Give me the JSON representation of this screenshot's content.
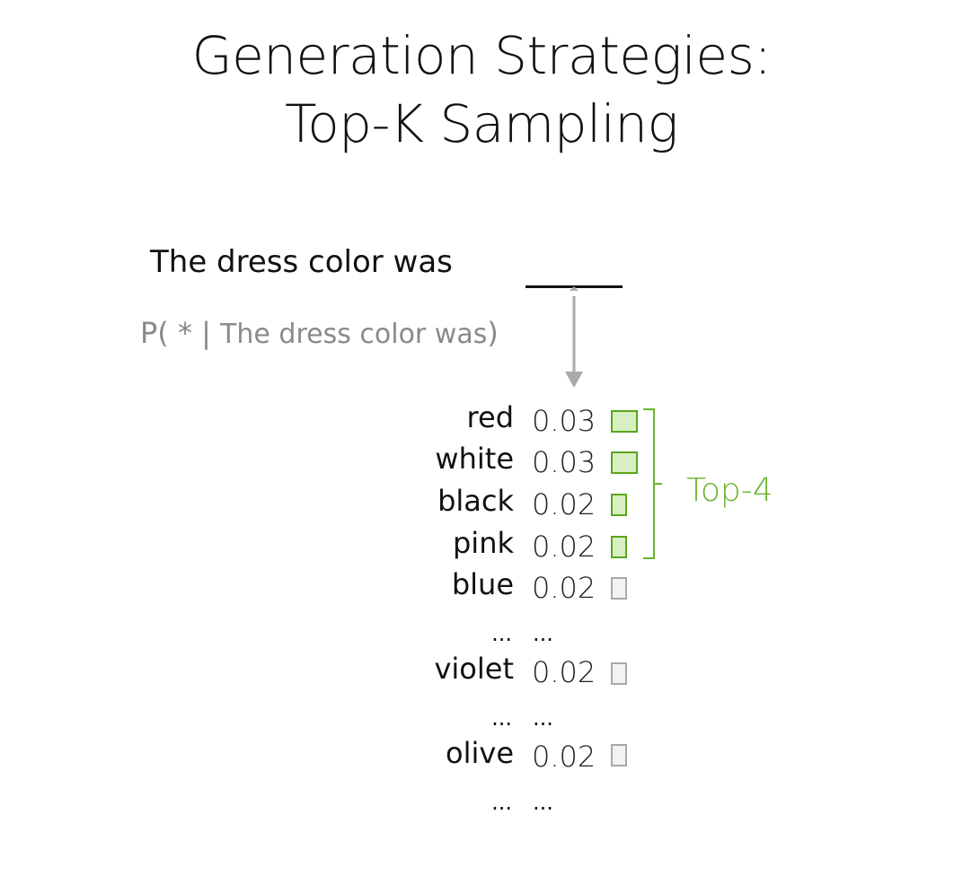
{
  "title": {
    "line1": "Generation Strategies:",
    "line2": "Top-K Sampling"
  },
  "sentence": "The dress color was",
  "conditional": {
    "prefix": "P( * |",
    "context": "The dress color was",
    "suffix": ")"
  },
  "tokens": [
    {
      "word": "red",
      "prob": "0.03",
      "in_top_k": true
    },
    {
      "word": "white",
      "prob": "0.03",
      "in_top_k": true
    },
    {
      "word": "black",
      "prob": "0.02",
      "in_top_k": true
    },
    {
      "word": "pink",
      "prob": "0.02",
      "in_top_k": true
    },
    {
      "word": "blue",
      "prob": "0.02",
      "in_top_k": false
    },
    {
      "word": "...",
      "prob": "...",
      "ellipsis": true
    },
    {
      "word": "violet",
      "prob": "0.02",
      "in_top_k": false
    },
    {
      "word": "...",
      "prob": "...",
      "ellipsis": true
    },
    {
      "word": "olive",
      "prob": "0.02",
      "in_top_k": false
    },
    {
      "word": "...",
      "prob": "...",
      "ellipsis": true
    }
  ],
  "top_k_label": "Top-4",
  "colors": {
    "accent": "#6ab22e",
    "muted": "#8a8a8a"
  }
}
